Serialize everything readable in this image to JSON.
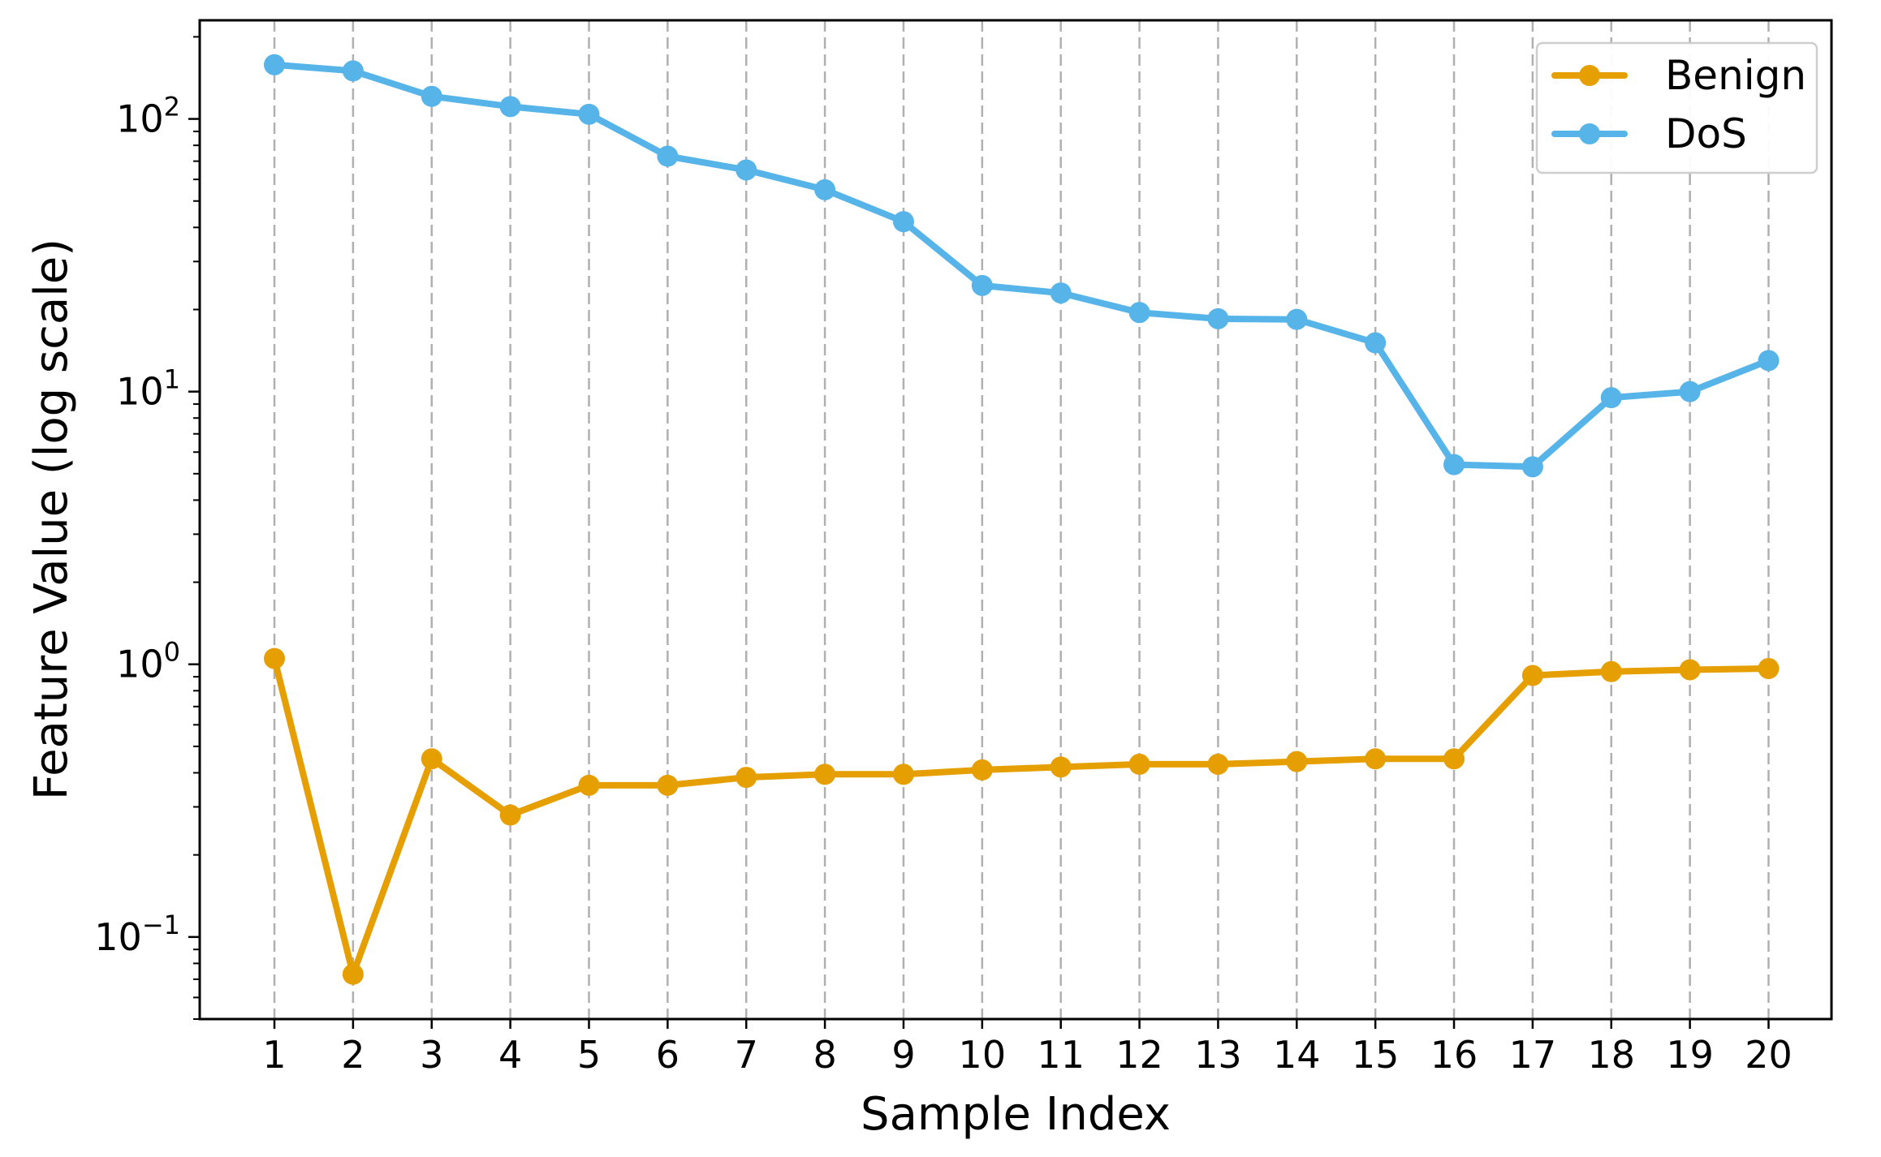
{
  "chart_data": {
    "type": "line",
    "xlabel": "Sample Index",
    "ylabel": "Feature Value (log scale)",
    "y_scale": "log",
    "ylim": [
      0.05,
      230
    ],
    "xlim": [
      0.05,
      20.8
    ],
    "x": [
      1,
      2,
      3,
      4,
      5,
      6,
      7,
      8,
      9,
      10,
      11,
      12,
      13,
      14,
      15,
      16,
      17,
      18,
      19,
      20
    ],
    "x_tick_labels": [
      "1",
      "2",
      "3",
      "4",
      "5",
      "6",
      "7",
      "8",
      "9",
      "10",
      "11",
      "12",
      "13",
      "14",
      "15",
      "16",
      "17",
      "18",
      "19",
      "20"
    ],
    "y_ticks": [
      {
        "value": 0.1,
        "base": "10",
        "exp": "−1"
      },
      {
        "value": 1,
        "base": "10",
        "exp": "0"
      },
      {
        "value": 10,
        "base": "10",
        "exp": "1"
      },
      {
        "value": 100,
        "base": "10",
        "exp": "2"
      }
    ],
    "grid": "x-only, dashed",
    "legend_position": "top-right",
    "series": [
      {
        "name": "Benign",
        "color": "#E69F00",
        "values": [
          1.05,
          0.073,
          0.45,
          0.28,
          0.36,
          0.36,
          0.385,
          0.395,
          0.395,
          0.41,
          0.42,
          0.43,
          0.43,
          0.44,
          0.45,
          0.45,
          0.91,
          0.94,
          0.955,
          0.965
        ]
      },
      {
        "name": "DoS",
        "color": "#56B4E9",
        "values": [
          158,
          150,
          121,
          111,
          104,
          73,
          65,
          55,
          42,
          24.5,
          23,
          19.5,
          18.5,
          18.4,
          15.1,
          5.4,
          5.3,
          9.5,
          10,
          13
        ]
      }
    ]
  }
}
